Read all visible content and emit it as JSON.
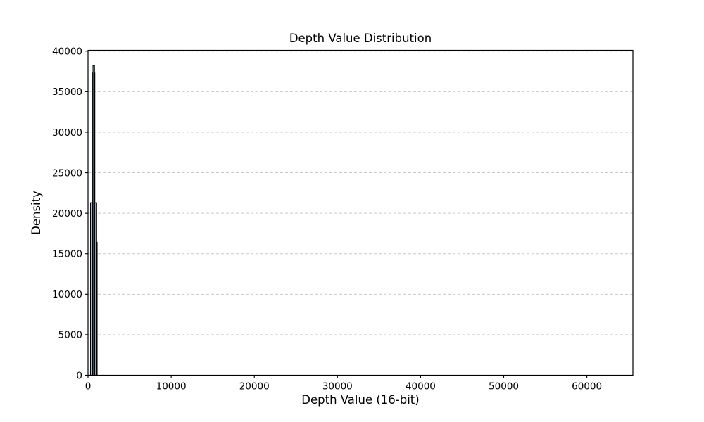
{
  "chart_data": {
    "type": "bar",
    "title": "Depth Value Distribution",
    "xlabel": "Depth Value (16-bit)",
    "ylabel": "Density",
    "xlim": [
      0,
      65535
    ],
    "ylim": [
      0,
      40110
    ],
    "xticks": [
      0,
      10000,
      20000,
      30000,
      40000,
      50000,
      60000
    ],
    "yticks": [
      0,
      5000,
      10000,
      15000,
      20000,
      25000,
      30000,
      35000,
      40000
    ],
    "grid": {
      "axis": "y",
      "style": "dashed",
      "color": "#c9c9c9"
    },
    "bar_fill": "#add8e6",
    "bar_edge": "#000000",
    "bins": [
      {
        "start": 300,
        "end": 560,
        "density": 21300
      },
      {
        "start": 560,
        "end": 820,
        "density": 37300
      },
      {
        "start": 600,
        "end": 780,
        "density": 38200
      },
      {
        "start": 820,
        "end": 1040,
        "density": 21300
      },
      {
        "start": 1040,
        "end": 1100,
        "density": 16400
      }
    ]
  }
}
